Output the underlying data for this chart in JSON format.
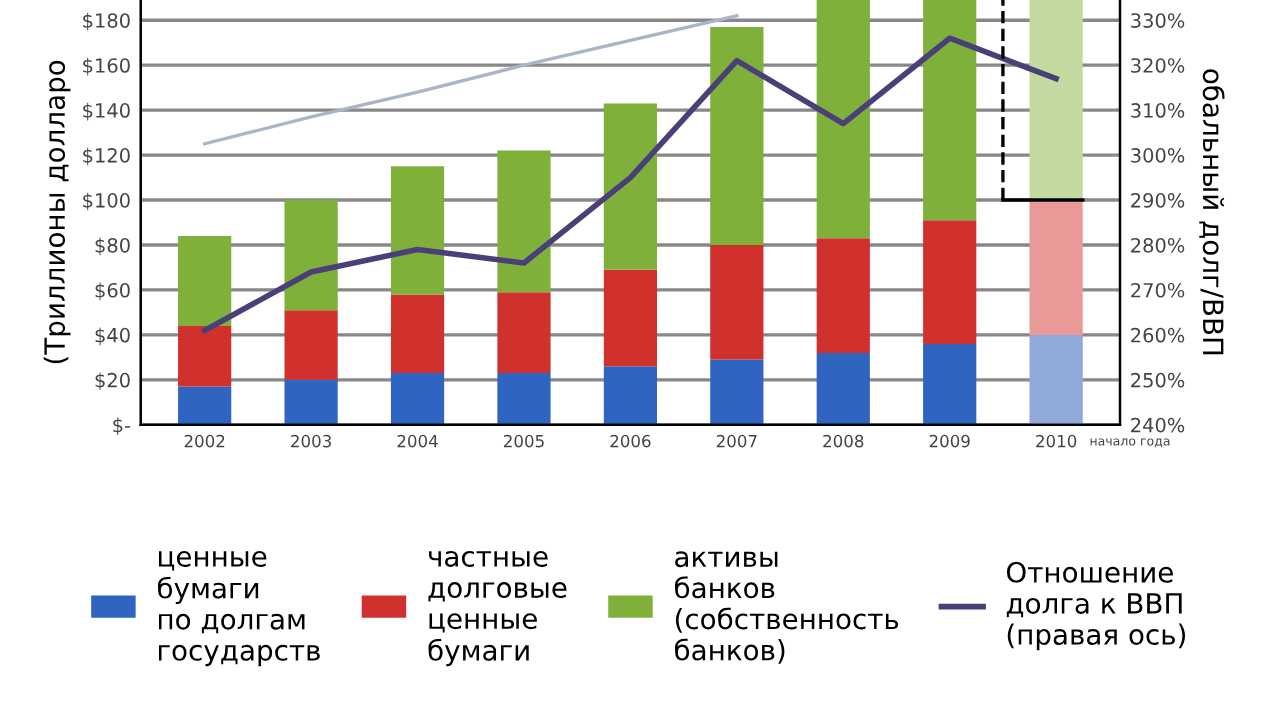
{
  "chart_data": {
    "type": "bar",
    "stacked": true,
    "categories": [
      "2002",
      "2003",
      "2004",
      "2005",
      "2006",
      "2007",
      "2008",
      "2009",
      "2010"
    ],
    "annotations": [
      "начало года"
    ],
    "xlabel": null,
    "ylabel": "(Триллионы долларо",
    "y2label": "обальный долг/ВВП",
    "series": [
      {
        "name": "ценные\nбумаги\nпо долгам\nгосударств",
        "color": "#2f65c0",
        "colors": [
          "#2f65c0",
          "#2f65c0",
          "#2f65c0",
          "#2f65c0",
          "#2f65c0",
          "#2f65c0",
          "#2f65c0",
          "#2f65c0",
          "#8fa9d8"
        ],
        "values": [
          17,
          20,
          23,
          23,
          26,
          29,
          32,
          36,
          40
        ]
      },
      {
        "name": "частные\nдолговые\nценные\nбумаги",
        "color": "#d0312d",
        "colors": [
          "#d0312d",
          "#d0312d",
          "#d0312d",
          "#d0312d",
          "#d0312d",
          "#d0312d",
          "#d0312d",
          "#d0312d",
          "#e99a98"
        ],
        "values": [
          27,
          31,
          35,
          36,
          43,
          51,
          51,
          55,
          60
        ]
      },
      {
        "name": "активы\nбанков\n(собственность\nбанков)",
        "color": "#7fb03a",
        "colors": [
          "#7fb03a",
          "#7fb03a",
          "#7fb03a",
          "#7fb03a",
          "#7fb03a",
          "#7fb03a",
          "#7fb03a",
          "#7fb03a",
          "#c4d9a0"
        ],
        "values": [
          40,
          49,
          57,
          63,
          74,
          97,
          106,
          98,
          89
        ]
      },
      {
        "type": "line",
        "color": "#aab4cc",
        "values": [
          125,
          137,
          148,
          160,
          171,
          182,
          null,
          null,
          null
        ]
      },
      {
        "name": "Отношение\nдолга к ВВП\n(правая ось)",
        "type": "line",
        "axis": "y2",
        "color": "#4a3f78",
        "values": [
          261,
          274,
          279,
          276,
          295,
          321,
          307,
          326,
          317
        ]
      }
    ],
    "ref_lines": [
      {
        "axis": "y2",
        "value": 290,
        "color": "#000000",
        "line_style": "solid"
      }
    ],
    "ylim": [
      0,
      189
    ],
    "yticks": [
      {
        "value": 0,
        "label": "$-"
      },
      {
        "value": 20,
        "label": "$20"
      },
      {
        "value": 40,
        "label": "$40"
      },
      {
        "value": 60,
        "label": "$60"
      },
      {
        "value": 80,
        "label": "$80"
      },
      {
        "value": 100,
        "label": "$100"
      },
      {
        "value": 120,
        "label": "$120"
      },
      {
        "value": 140,
        "label": "$140"
      },
      {
        "value": 160,
        "label": "$160"
      },
      {
        "value": 180,
        "label": "$180"
      }
    ],
    "y2lim": [
      240,
      334.5
    ],
    "y2ticks": [
      {
        "value": 240,
        "label": "240%"
      },
      {
        "value": 250,
        "label": "250%"
      },
      {
        "value": 260,
        "label": "260%"
      },
      {
        "value": 270,
        "label": "270%"
      },
      {
        "value": 280,
        "label": "280%"
      },
      {
        "value": 290,
        "label": "290%"
      },
      {
        "value": 300,
        "label": "300%"
      },
      {
        "value": 310,
        "label": "310%"
      },
      {
        "value": 320,
        "label": "320%"
      },
      {
        "value": 330,
        "label": "330%"
      }
    ],
    "grid": "y",
    "legend": "bottom"
  }
}
